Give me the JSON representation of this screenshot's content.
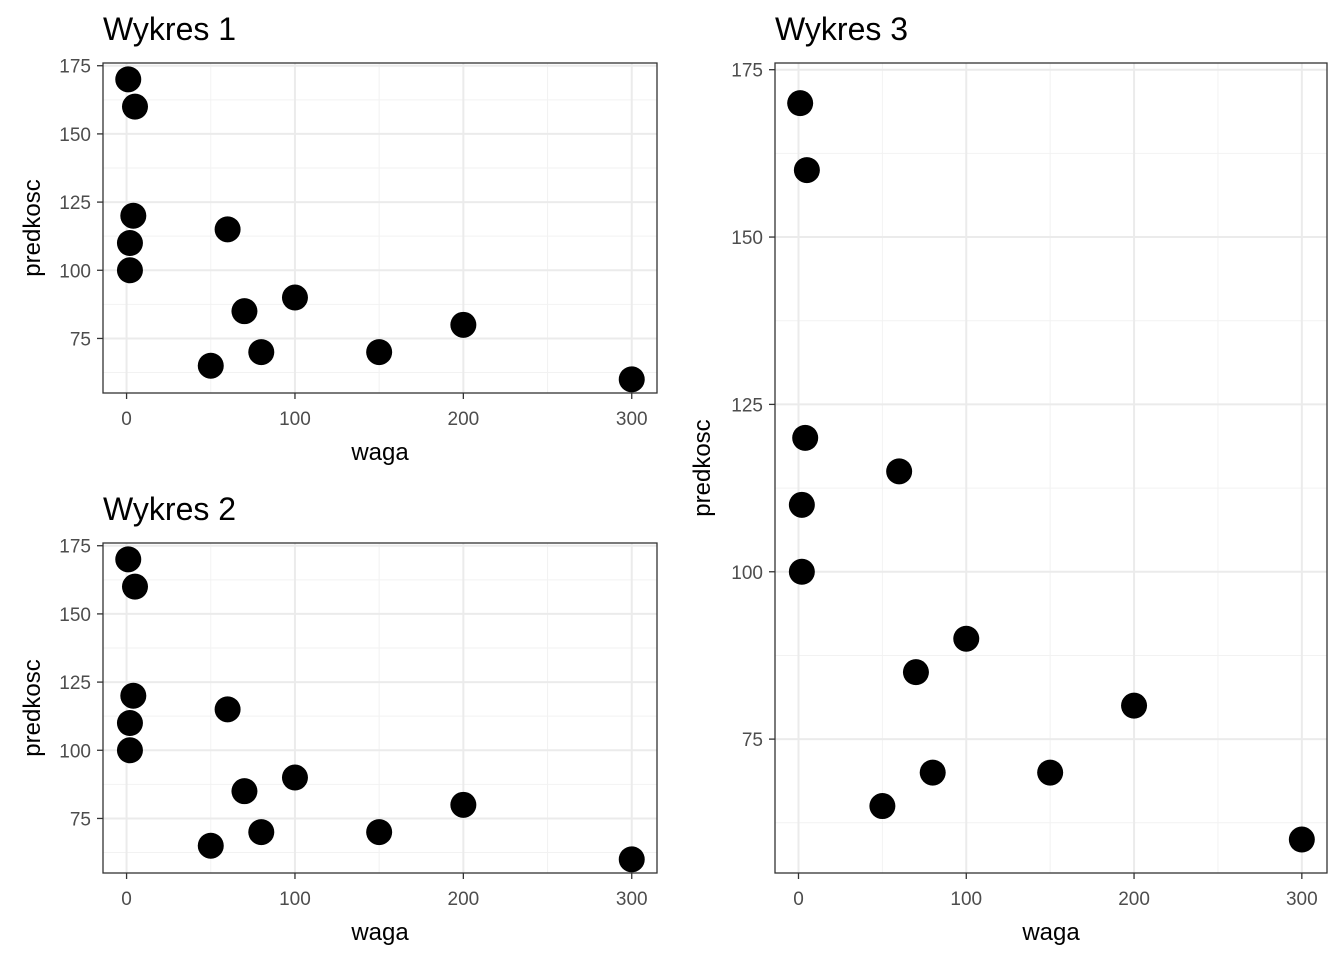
{
  "chart_data": [
    {
      "type": "scatter",
      "title": "Wykres 1",
      "xlabel": "waga",
      "ylabel": "predkosc",
      "xlim": [
        -14,
        315
      ],
      "ylim": [
        55,
        176
      ],
      "xticks": [
        0,
        100,
        200,
        300
      ],
      "yticks": [
        75,
        100,
        125,
        150,
        175
      ],
      "grid": true,
      "x": [
        1,
        5,
        4,
        2,
        2,
        60,
        70,
        100,
        80,
        50,
        150,
        200,
        300
      ],
      "y": [
        170,
        160,
        120,
        110,
        100,
        115,
        85,
        90,
        70,
        65,
        70,
        80,
        60
      ]
    },
    {
      "type": "scatter",
      "title": "Wykres 2",
      "xlabel": "waga",
      "ylabel": "predkosc",
      "xlim": [
        -14,
        315
      ],
      "ylim": [
        55,
        176
      ],
      "xticks": [
        0,
        100,
        200,
        300
      ],
      "yticks": [
        75,
        100,
        125,
        150,
        175
      ],
      "grid": true,
      "x": [
        1,
        5,
        4,
        2,
        2,
        60,
        70,
        100,
        80,
        50,
        150,
        200,
        300
      ],
      "y": [
        170,
        160,
        120,
        110,
        100,
        115,
        85,
        90,
        70,
        65,
        70,
        80,
        60
      ]
    },
    {
      "type": "scatter",
      "title": "Wykres 3",
      "xlabel": "waga",
      "ylabel": "predkosc",
      "xlim": [
        -14,
        315
      ],
      "ylim": [
        55,
        176
      ],
      "xticks": [
        0,
        100,
        200,
        300
      ],
      "yticks": [
        75,
        100,
        125,
        150,
        175
      ],
      "grid": true,
      "x": [
        1,
        5,
        4,
        2,
        2,
        60,
        70,
        100,
        80,
        50,
        150,
        200,
        300
      ],
      "y": [
        170,
        160,
        120,
        110,
        100,
        115,
        85,
        90,
        70,
        65,
        70,
        80,
        60
      ]
    }
  ]
}
